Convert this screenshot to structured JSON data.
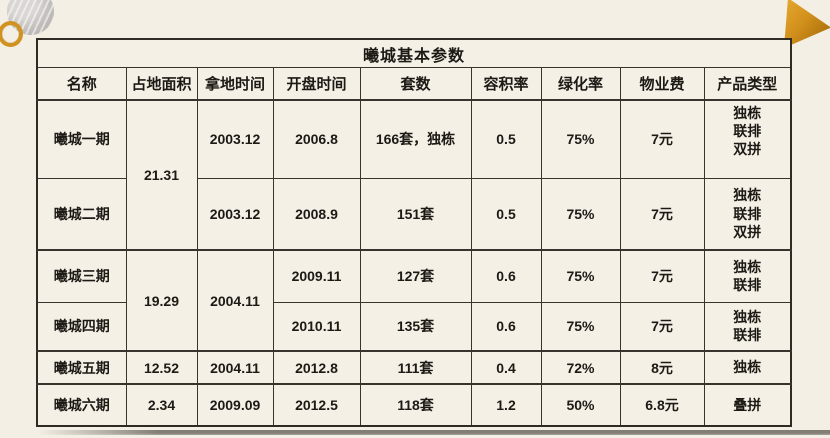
{
  "page": {
    "background_color": "#f3efe5",
    "accent_gold": "#d2921f",
    "border_color": "#38342d"
  },
  "decorations": {
    "triangle": "gold-triangle",
    "ring": "gold-ring",
    "circle": "marble-circle"
  },
  "table": {
    "title": "曦城基本参数",
    "columns": [
      "名称",
      "占地面积",
      "拿地时间",
      "开盘时间",
      "套数",
      "容积率",
      "绿化率",
      "物业费",
      "产品类型"
    ],
    "rows": [
      {
        "name": "曦城一期",
        "area": "21.31",
        "land_time": "2003.12",
        "open_time": "2006.8",
        "units": "166套，独栋",
        "plot_ratio": "0.5",
        "green_rate": "75%",
        "property_fee": "7元",
        "product_type": "独栋\n联排\n双拼"
      },
      {
        "name": "曦城二期",
        "land_time": "2003.12",
        "open_time": "2008.9",
        "units": "151套",
        "plot_ratio": "0.5",
        "green_rate": "75%",
        "property_fee": "7元",
        "product_type": "独栋\n联排\n双拼"
      },
      {
        "name": "曦城三期",
        "area": "19.29",
        "land_time": "2004.11",
        "open_time": "2009.11",
        "units": "127套",
        "plot_ratio": "0.6",
        "green_rate": "75%",
        "property_fee": "7元",
        "product_type": "独栋\n联排"
      },
      {
        "name": "曦城四期",
        "open_time": "2010.11",
        "units": "135套",
        "plot_ratio": "0.6",
        "green_rate": "75%",
        "property_fee": "7元",
        "product_type": "独栋\n联排"
      },
      {
        "name": "曦城五期",
        "area": "12.52",
        "land_time": "2004.11",
        "open_time": "2012.8",
        "units": "111套",
        "plot_ratio": "0.4",
        "green_rate": "72%",
        "property_fee": "8元",
        "product_type": "独栋"
      },
      {
        "name": "曦城六期",
        "area": "2.34",
        "land_time": "2009.09",
        "open_time": "2012.5",
        "units": "118套",
        "plot_ratio": "1.2",
        "green_rate": "50%",
        "property_fee": "6.8元",
        "product_type": "叠拼"
      }
    ]
  }
}
